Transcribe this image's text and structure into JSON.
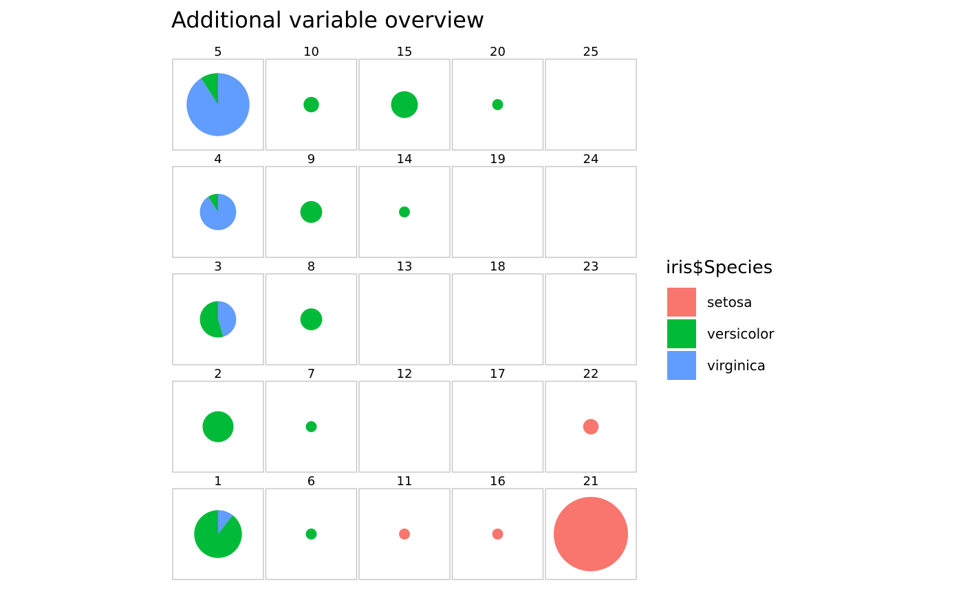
{
  "chart_data": {
    "type": "pie",
    "title": "Additional variable overview",
    "legend": {
      "title": "iris$Species",
      "position": "right",
      "entries": [
        {
          "name": "setosa",
          "color": "#F8766D"
        },
        {
          "name": "versicolor",
          "color": "#00BA38"
        },
        {
          "name": "virginica",
          "color": "#619CFF"
        }
      ]
    },
    "grid": {
      "columns": 5,
      "rows": 5
    },
    "cells": [
      {
        "label": "1",
        "col": 0,
        "row": 0,
        "counts": {
          "setosa": 0,
          "versicolor": 17,
          "virginica": 2
        }
      },
      {
        "label": "2",
        "col": 0,
        "row": 1,
        "counts": {
          "setosa": 0,
          "versicolor": 8,
          "virginica": 0
        }
      },
      {
        "label": "3",
        "col": 0,
        "row": 2,
        "counts": {
          "setosa": 0,
          "versicolor": 6,
          "virginica": 5
        }
      },
      {
        "label": "4",
        "col": 0,
        "row": 3,
        "counts": {
          "setosa": 0,
          "versicolor": 1,
          "virginica": 10
        }
      },
      {
        "label": "5",
        "col": 0,
        "row": 4,
        "counts": {
          "setosa": 0,
          "versicolor": 3,
          "virginica": 30
        }
      },
      {
        "label": "6",
        "col": 1,
        "row": 0,
        "counts": {
          "setosa": 0,
          "versicolor": 1,
          "virginica": 0
        }
      },
      {
        "label": "7",
        "col": 1,
        "row": 1,
        "counts": {
          "setosa": 0,
          "versicolor": 1,
          "virginica": 0
        }
      },
      {
        "label": "8",
        "col": 1,
        "row": 2,
        "counts": {
          "setosa": 0,
          "versicolor": 4,
          "virginica": 0
        }
      },
      {
        "label": "9",
        "col": 1,
        "row": 3,
        "counts": {
          "setosa": 0,
          "versicolor": 4,
          "virginica": 0
        }
      },
      {
        "label": "10",
        "col": 1,
        "row": 4,
        "counts": {
          "setosa": 0,
          "versicolor": 2,
          "virginica": 0
        }
      },
      {
        "label": "11",
        "col": 2,
        "row": 0,
        "counts": {
          "setosa": 1,
          "versicolor": 0,
          "virginica": 0
        }
      },
      {
        "label": "12",
        "col": 2,
        "row": 1,
        "counts": {
          "setosa": 0,
          "versicolor": 0,
          "virginica": 0
        }
      },
      {
        "label": "13",
        "col": 2,
        "row": 2,
        "counts": {
          "setosa": 0,
          "versicolor": 0,
          "virginica": 0
        }
      },
      {
        "label": "14",
        "col": 2,
        "row": 3,
        "counts": {
          "setosa": 0,
          "versicolor": 1,
          "virginica": 0
        }
      },
      {
        "label": "15",
        "col": 2,
        "row": 4,
        "counts": {
          "setosa": 0,
          "versicolor": 6,
          "virginica": 0
        }
      },
      {
        "label": "16",
        "col": 3,
        "row": 0,
        "counts": {
          "setosa": 1,
          "versicolor": 0,
          "virginica": 0
        }
      },
      {
        "label": "17",
        "col": 3,
        "row": 1,
        "counts": {
          "setosa": 0,
          "versicolor": 0,
          "virginica": 0
        }
      },
      {
        "label": "18",
        "col": 3,
        "row": 2,
        "counts": {
          "setosa": 0,
          "versicolor": 0,
          "virginica": 0
        }
      },
      {
        "label": "19",
        "col": 3,
        "row": 3,
        "counts": {
          "setosa": 0,
          "versicolor": 0,
          "virginica": 0
        }
      },
      {
        "label": "20",
        "col": 3,
        "row": 4,
        "counts": {
          "setosa": 0,
          "versicolor": 1,
          "virginica": 0
        }
      },
      {
        "label": "21",
        "col": 4,
        "row": 0,
        "counts": {
          "setosa": 46,
          "versicolor": 0,
          "virginica": 0
        }
      },
      {
        "label": "22",
        "col": 4,
        "row": 1,
        "counts": {
          "setosa": 2,
          "versicolor": 0,
          "virginica": 0
        }
      },
      {
        "label": "23",
        "col": 4,
        "row": 2,
        "counts": {
          "setosa": 0,
          "versicolor": 0,
          "virginica": 0
        }
      },
      {
        "label": "24",
        "col": 4,
        "row": 3,
        "counts": {
          "setosa": 0,
          "versicolor": 0,
          "virginica": 0
        }
      },
      {
        "label": "25",
        "col": 4,
        "row": 4,
        "counts": {
          "setosa": 0,
          "versicolor": 0,
          "virginica": 0
        }
      }
    ]
  }
}
